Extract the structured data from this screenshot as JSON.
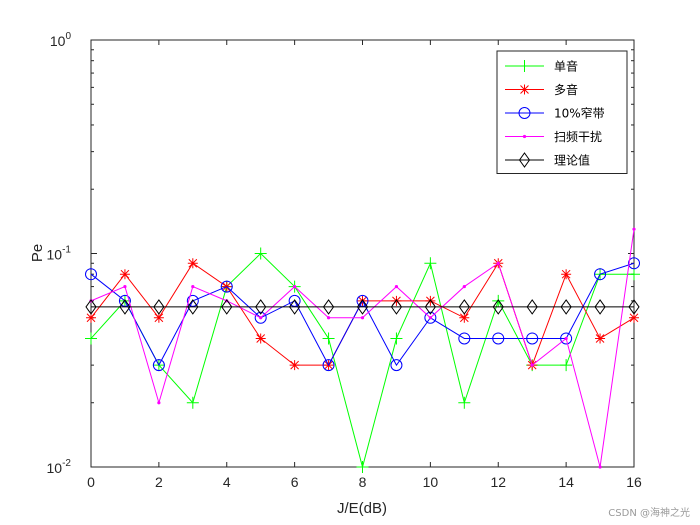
{
  "chart_data": {
    "type": "line",
    "xlabel": "J/E(dB)",
    "ylabel": "Pe",
    "xlim": [
      0,
      16
    ],
    "ylim": [
      0.01,
      1
    ],
    "yscale": "log",
    "x_ticks": [
      0,
      2,
      4,
      6,
      8,
      10,
      12,
      14,
      16
    ],
    "y_ticks": [
      {
        "value": 1,
        "base": "10",
        "exp": "0"
      },
      {
        "value": 0.1,
        "base": "10",
        "exp": "-1"
      },
      {
        "value": 0.01,
        "base": "10",
        "exp": "-2"
      }
    ],
    "grid": false,
    "legend_position": "top-right",
    "x": [
      0,
      1,
      2,
      3,
      4,
      5,
      6,
      7,
      8,
      9,
      10,
      11,
      12,
      13,
      14,
      15,
      16
    ],
    "series": [
      {
        "name": "单音",
        "color": "#00ff00",
        "marker": "plus",
        "values": [
          0.04,
          0.06,
          0.03,
          0.02,
          0.07,
          0.1,
          0.07,
          0.04,
          0.01,
          0.04,
          0.09,
          0.02,
          0.06,
          0.03,
          0.03,
          0.08,
          0.08
        ]
      },
      {
        "name": "多音",
        "color": "#ff0000",
        "marker": "asterisk",
        "values": [
          0.05,
          0.08,
          0.05,
          0.09,
          0.07,
          0.04,
          0.03,
          0.03,
          0.06,
          0.06,
          0.06,
          0.05,
          0.09,
          0.03,
          0.08,
          0.04,
          0.05
        ]
      },
      {
        "name": "10%窄带",
        "color": "#0000ff",
        "marker": "circle",
        "values": [
          0.08,
          0.06,
          0.03,
          0.06,
          0.07,
          0.05,
          0.06,
          0.03,
          0.06,
          0.03,
          0.05,
          0.04,
          0.04,
          0.04,
          0.04,
          0.08,
          0.09
        ]
      },
      {
        "name": "扫频干扰",
        "color": "#ff00ff",
        "marker": "dot",
        "values": [
          0.06,
          0.07,
          0.02,
          0.07,
          0.06,
          0.05,
          0.07,
          0.05,
          0.05,
          0.07,
          0.05,
          0.07,
          0.09,
          0.03,
          0.04,
          0.01,
          0.13
        ]
      },
      {
        "name": "理论值",
        "color": "#000000",
        "marker": "diamond",
        "values": [
          0.0562,
          0.0562,
          0.0562,
          0.0562,
          0.0562,
          0.0562,
          0.0562,
          0.0562,
          0.0562,
          0.0562,
          0.0562,
          0.0562,
          0.0562,
          0.0562,
          0.0562,
          0.0562,
          0.0562
        ]
      }
    ]
  },
  "watermark": "CSDN @海神之光"
}
